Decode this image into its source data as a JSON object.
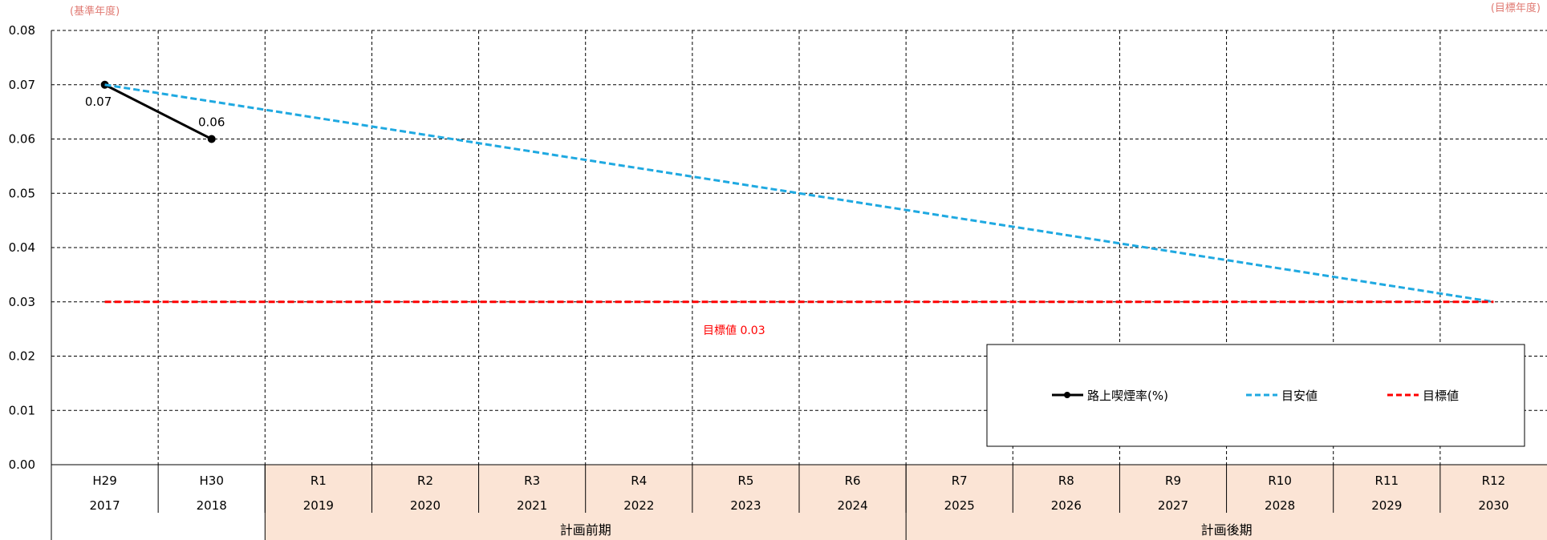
{
  "notes": {
    "base_year": "(基準年度)",
    "target_year": "(目標年度)"
  },
  "chart_data": {
    "type": "line",
    "y_ticks": [
      "0.00",
      "0.01",
      "0.02",
      "0.03",
      "0.04",
      "0.05",
      "0.06",
      "0.07",
      "0.08"
    ],
    "ylim": [
      0,
      0.08
    ],
    "grid": true,
    "categories_era": [
      "H29",
      "H30",
      "R1",
      "R2",
      "R3",
      "R4",
      "R5",
      "R6",
      "R7",
      "R8",
      "R9",
      "R10",
      "R11",
      "R12"
    ],
    "categories_year": [
      "2017",
      "2018",
      "2019",
      "2020",
      "2021",
      "2022",
      "2023",
      "2024",
      "2025",
      "2026",
      "2027",
      "2028",
      "2029",
      "2030"
    ],
    "periods": [
      {
        "label": "計画前期",
        "start_index": 2,
        "end_index": 7
      },
      {
        "label": "計画後期",
        "start_index": 8,
        "end_index": 13
      }
    ],
    "series": [
      {
        "name": "路上喫煙率(%)",
        "color": "#000000",
        "style": "solid-marker",
        "values": [
          0.07,
          0.06,
          null,
          null,
          null,
          null,
          null,
          null,
          null,
          null,
          null,
          null,
          null,
          null
        ],
        "labels": [
          "0.07",
          "0.06"
        ]
      },
      {
        "name": "目安値",
        "color": "#1fa9e1",
        "style": "dashed",
        "values": [
          0.07,
          null,
          null,
          null,
          null,
          null,
          null,
          null,
          null,
          null,
          null,
          null,
          null,
          0.03
        ]
      },
      {
        "name": "目標値",
        "color": "#ff0000",
        "style": "dashed",
        "values": [
          0.03,
          0.03,
          0.03,
          0.03,
          0.03,
          0.03,
          0.03,
          0.03,
          0.03,
          0.03,
          0.03,
          0.03,
          0.03,
          0.03
        ]
      }
    ],
    "annotation": "目標値 0.03",
    "legend": {
      "placement": "bottom-right"
    },
    "colors": {
      "shaded_band": "#fbe4d5"
    }
  }
}
